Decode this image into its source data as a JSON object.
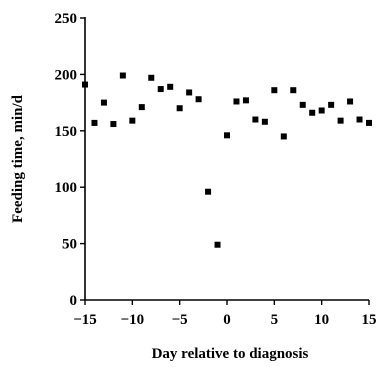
{
  "chart_data": {
    "type": "scatter",
    "xlabel": "Day relative to diagnosis",
    "ylabel": "Feeding time, min/d",
    "xlim": [
      -15,
      15
    ],
    "ylim": [
      0,
      250
    ],
    "x_ticks": [
      -15,
      -10,
      -5,
      0,
      5,
      10,
      15
    ],
    "x_tick_labels": [
      "−15",
      "−10",
      "−5",
      "0",
      "5",
      "10",
      "15"
    ],
    "y_ticks": [
      0,
      50,
      100,
      150,
      200,
      250
    ],
    "y_tick_labels": [
      "0",
      "50",
      "100",
      "150",
      "200",
      "250"
    ],
    "grid": false,
    "legend": "none",
    "point_color": "#000000",
    "points": [
      {
        "x": -15,
        "y": 191
      },
      {
        "x": -14,
        "y": 157
      },
      {
        "x": -13,
        "y": 175
      },
      {
        "x": -12,
        "y": 156
      },
      {
        "x": -11,
        "y": 199
      },
      {
        "x": -10,
        "y": 159
      },
      {
        "x": -9,
        "y": 171
      },
      {
        "x": -8,
        "y": 197
      },
      {
        "x": -7,
        "y": 187
      },
      {
        "x": -6,
        "y": 189
      },
      {
        "x": -5,
        "y": 170
      },
      {
        "x": -4,
        "y": 184
      },
      {
        "x": -3,
        "y": 178
      },
      {
        "x": -2,
        "y": 96
      },
      {
        "x": -1,
        "y": 49
      },
      {
        "x": 0,
        "y": 146
      },
      {
        "x": 1,
        "y": 176
      },
      {
        "x": 2,
        "y": 177
      },
      {
        "x": 3,
        "y": 160
      },
      {
        "x": 4,
        "y": 158
      },
      {
        "x": 5,
        "y": 186
      },
      {
        "x": 6,
        "y": 145
      },
      {
        "x": 7,
        "y": 186
      },
      {
        "x": 8,
        "y": 173
      },
      {
        "x": 9,
        "y": 166
      },
      {
        "x": 10,
        "y": 168
      },
      {
        "x": 11,
        "y": 173
      },
      {
        "x": 12,
        "y": 159
      },
      {
        "x": 13,
        "y": 176
      },
      {
        "x": 14,
        "y": 160
      },
      {
        "x": 15,
        "y": 157
      }
    ]
  }
}
